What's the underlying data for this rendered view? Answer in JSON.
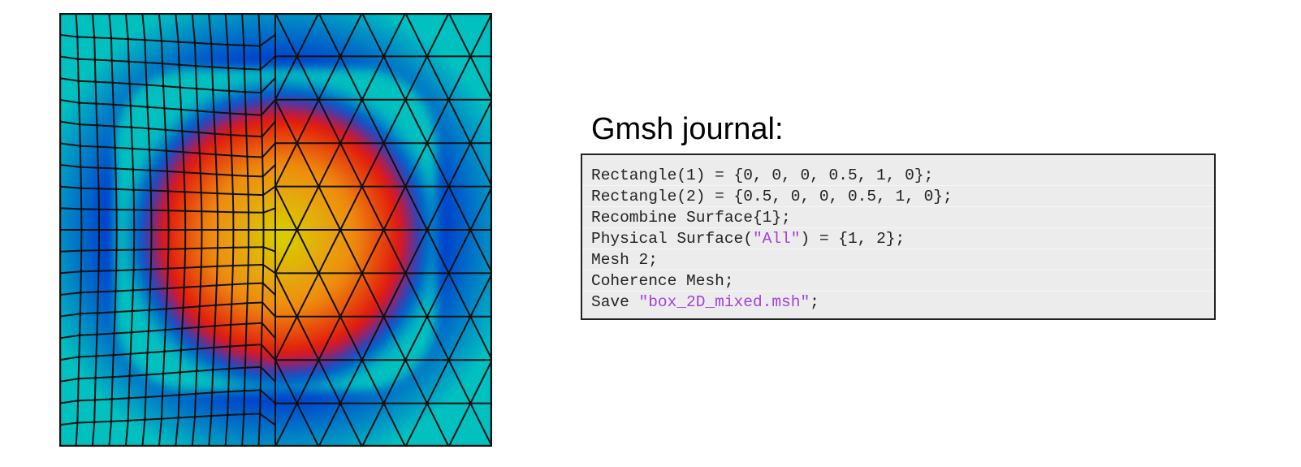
{
  "figure": {
    "colors": {
      "hot_center": "#d7d200",
      "mid": "#ee8a10",
      "warm": "#e01010",
      "cool": "#0044cc",
      "cold_edge": "#00c0c0",
      "edges": "#111111"
    }
  },
  "journal": {
    "title": "Gmsh journal:",
    "lines": [
      {
        "segments": [
          {
            "text": "Rectangle(1) = {0, 0, 0, 0.5, 1, 0};",
            "kind": "code"
          }
        ]
      },
      {
        "segments": [
          {
            "text": "Rectangle(2) = {0.5, 0, 0, 0.5, 1, 0};",
            "kind": "code"
          }
        ]
      },
      {
        "segments": [
          {
            "text": "Recombine Surface{1};",
            "kind": "code"
          }
        ]
      },
      {
        "segments": [
          {
            "text": "Physical Surface(",
            "kind": "code"
          },
          {
            "text": "\"All\"",
            "kind": "string"
          },
          {
            "text": ") = {1, 2};",
            "kind": "code"
          }
        ]
      },
      {
        "segments": [
          {
            "text": "Mesh 2;",
            "kind": "code"
          }
        ]
      },
      {
        "segments": [
          {
            "text": "Coherence Mesh;",
            "kind": "code"
          }
        ]
      },
      {
        "segments": [
          {
            "text": "Save ",
            "kind": "code"
          },
          {
            "text": "\"box_2D_mixed.msh\"",
            "kind": "string"
          },
          {
            "text": ";",
            "kind": "code"
          }
        ]
      }
    ]
  }
}
